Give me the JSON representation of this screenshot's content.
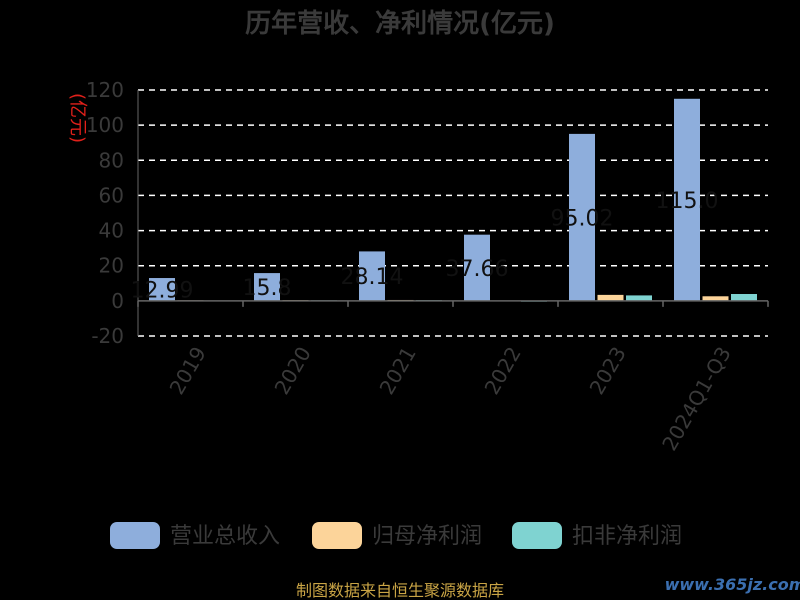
{
  "chart_data": {
    "type": "bar",
    "title": "历年营收、净利情况(亿元)",
    "ylabel": "(亿元)",
    "xlabel": "",
    "ylim": [
      -20,
      120
    ],
    "yticks": [
      "120",
      "100",
      "80",
      "60",
      "40",
      "20",
      "0",
      "-20"
    ],
    "ytick_values": [
      120,
      100,
      80,
      60,
      40,
      20,
      0,
      -20
    ],
    "grid": true,
    "legend_position": "bottom",
    "categories": [
      "2019",
      "2020",
      "2021",
      "2022",
      "2023",
      "2024Q1-Q3"
    ],
    "series": [
      {
        "name": "营业总收入",
        "color": "#8eaedc",
        "values": [
          12.99,
          15.8,
          28.14,
          37.66,
          95.02,
          115.0
        ],
        "labels": [
          "12.99",
          "15.8",
          "28.14",
          "37.66",
          "95.02",
          "115.0"
        ]
      },
      {
        "name": "归母净利润",
        "color": "#fcd49a",
        "values": [
          0.3,
          0.4,
          0.5,
          0.2,
          3.4,
          2.6
        ]
      },
      {
        "name": "扣非净利润",
        "color": "#7fd3d1",
        "values": [
          0.2,
          0.3,
          0.4,
          0.1,
          3.1,
          3.9
        ]
      }
    ]
  },
  "footer": "制图数据来自恒生聚源数据库",
  "watermark": "www.365jz.com"
}
